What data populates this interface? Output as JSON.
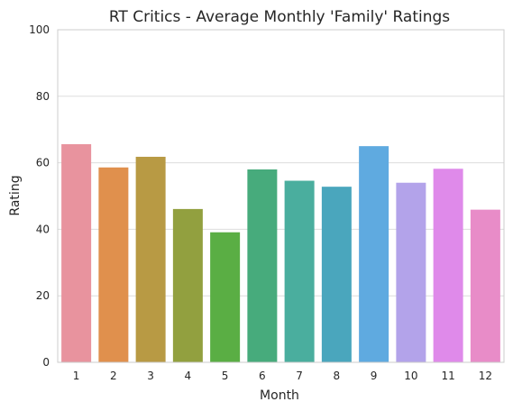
{
  "chart_data": {
    "type": "bar",
    "title": "RT Critics - Average Monthly 'Family' Ratings",
    "xlabel": "Month",
    "ylabel": "Rating",
    "categories": [
      "1",
      "2",
      "3",
      "4",
      "5",
      "6",
      "7",
      "8",
      "9",
      "10",
      "11",
      "12"
    ],
    "values": [
      65.6,
      58.6,
      61.8,
      46.1,
      39.1,
      58.0,
      54.6,
      52.8,
      65.0,
      54.0,
      58.2,
      45.9
    ],
    "ylim": [
      0,
      100
    ],
    "yticks": [
      0,
      20,
      40,
      60,
      80,
      100
    ],
    "grid": "horizontal",
    "colors": [
      "#e8939e",
      "#e0904d",
      "#b89a44",
      "#92a03f",
      "#5aae44",
      "#47ab7c",
      "#4aae9e",
      "#4aa6bd",
      "#5faae0",
      "#b3a3ea",
      "#df8aea",
      "#e88cc8"
    ]
  }
}
